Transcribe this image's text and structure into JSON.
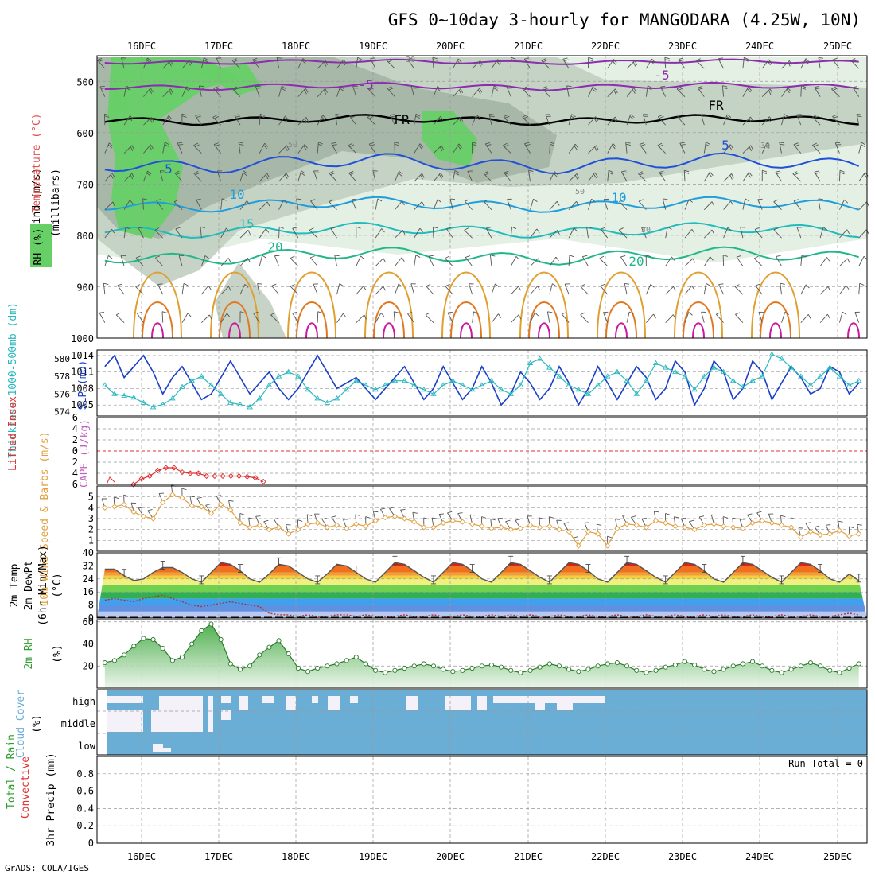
{
  "page": {
    "title": "GFS 0~10day 3-hourly for MANGODARA (4.25W, 10N)",
    "footer": "GrADS: COLA/IGES",
    "run_total": "Run Total = 0"
  },
  "colors": {
    "rh_light": "#e3efe3",
    "rh_mid": "#c3d1c3",
    "rh_dark": "#a6b6a6",
    "rh_green": "#66d066",
    "temp_neg5": "#8c2db0",
    "temp_fr": "#000000",
    "temp_5": "#2050d8",
    "temp_10": "#1e9edc",
    "temp_15": "#20bcbc",
    "temp_20": "#20b88a",
    "temp_25": "#e0a030",
    "temp_30": "#e07820",
    "temp_35": "#cc1aa0",
    "slp": "#1a3fc8",
    "thickness": "#2ab8c0",
    "lifted_index": "#e03030",
    "cape": "#c060c0",
    "wind_speed": "#e0a040",
    "barb": "#555555",
    "rh2m": "#2fa02f",
    "cloud": "#6aaed6",
    "cloud_clear": "#f4f2f8",
    "precip_total": "#2fa02f",
    "precip_conv": "#e03030"
  },
  "chart_data": [
    {
      "id": "upper",
      "type": "heatmap",
      "x_dates": [
        "16DEC",
        "17DEC",
        "18DEC",
        "19DEC",
        "20DEC",
        "21DEC",
        "22DEC",
        "23DEC",
        "24DEC",
        "25DEC"
      ],
      "y_ticks": [
        500,
        600,
        700,
        800,
        900,
        1000
      ],
      "ylim": [
        1000,
        450
      ],
      "ylabel": "(millibars)",
      "side_labels": [
        "Wind (m/s)",
        "Temperature (°C)",
        "RH (%)"
      ],
      "contour_labels": [
        "-5",
        "-5",
        "FR",
        "FR",
        "5",
        "5",
        "10",
        "10",
        "15",
        "20",
        "20",
        "30",
        "30",
        "30",
        "50",
        "50"
      ],
      "rh_legend": "RH (%)"
    },
    {
      "id": "slp",
      "type": "line",
      "ylabel_left": "Thickness 1000-500mb (dm)",
      "ylabel_right": "SLP (mb)",
      "left_ticks": [
        "580",
        "578",
        "576",
        "574"
      ],
      "right_ticks": [
        "1014",
        "1011",
        "1008",
        "1005"
      ],
      "ylim_slp": [
        1003,
        1015
      ],
      "ylim_thick": [
        573.5,
        581
      ],
      "series": [
        {
          "name": "SLP",
          "color": "slp",
          "values": [
            1008,
            1012,
            1014,
            1010,
            1012,
            1014,
            1011,
            1007,
            1010,
            1012,
            1009,
            1006,
            1007,
            1010,
            1013,
            1010,
            1007,
            1009,
            1011,
            1008,
            1006,
            1008,
            1011,
            1014,
            1011,
            1008,
            1009,
            1010,
            1008,
            1006,
            1008,
            1010,
            1012,
            1009,
            1006,
            1008,
            1012,
            1009,
            1006,
            1008,
            1012,
            1009,
            1005,
            1007,
            1011,
            1009,
            1006,
            1008,
            1012,
            1009,
            1005,
            1008,
            1012,
            1009,
            1006,
            1009,
            1012,
            1010,
            1006,
            1008,
            1013,
            1011,
            1005,
            1008,
            1013,
            1011,
            1006,
            1008,
            1013,
            1011,
            1006,
            1009,
            1012,
            1010,
            1007,
            1008,
            1012,
            1011,
            1007,
            1009
          ]
        },
        {
          "name": "Thickness",
          "color": "thickness",
          "values": [
            576.5,
            577.0,
            576.0,
            575.8,
            575.6,
            575.0,
            574.5,
            574.8,
            575.5,
            576.8,
            577.5,
            578.0,
            577.0,
            576.0,
            575.0,
            574.8,
            574.5,
            575.5,
            577.0,
            578.0,
            578.5,
            578.0,
            576.5,
            575.5,
            575.0,
            575.5,
            576.5,
            577.5,
            577.0,
            576.5,
            577.0,
            577.5,
            577.5,
            577.0,
            576.5,
            576.0,
            577.0,
            577.5,
            577.0,
            576.5,
            577.0,
            577.5,
            576.5,
            576.0,
            577.0,
            579.5,
            580.0,
            579.0,
            578.0,
            577.0,
            576.5,
            576.0,
            577.0,
            578.0,
            578.5,
            577.5,
            576.0,
            577.5,
            579.5,
            579.0,
            578.5,
            578.0,
            576.5,
            578.0,
            579.0,
            578.5,
            577.5,
            576.8,
            577.5,
            578.0,
            580.5,
            580.0,
            579.0,
            578.0,
            577.0,
            578.0,
            579.0,
            578.0,
            577.0,
            577.5
          ]
        }
      ]
    },
    {
      "id": "li",
      "type": "line",
      "ylabel_left": "Lifted Index",
      "ylabel_right": "CAPE (J/kg)",
      "ticks": [
        "-6",
        "-4",
        "-2",
        "0",
        "2",
        "4",
        "6"
      ],
      "ylim": [
        -6,
        6
      ],
      "series": [
        {
          "name": "Lifted Index",
          "color": "lifted_index",
          "x": [
            0.9,
            1.0,
            1.1,
            1.2,
            1.3,
            1.4,
            1.5,
            1.6,
            1.7,
            1.8,
            1.9,
            2.0,
            2.1,
            2.2,
            2.3,
            2.4,
            2.5
          ],
          "values": [
            6,
            5,
            4.5,
            3.5,
            3,
            3,
            3.8,
            4,
            4,
            4.5,
            4.5,
            4.5,
            4.5,
            4.5,
            4.6,
            4.8,
            5.5
          ]
        }
      ]
    },
    {
      "id": "wind",
      "type": "line",
      "ylabel": "10m Wind Speed & Barbs (m/s)",
      "ticks": [
        "1",
        "2",
        "3",
        "4",
        "5"
      ],
      "ylim": [
        0,
        6
      ],
      "series": [
        {
          "name": "10m Wind Speed",
          "color": "wind_speed",
          "values": [
            4.2,
            4.0,
            4.1,
            4.3,
            3.6,
            3.2,
            3.0,
            4.5,
            5.2,
            4.9,
            4.2,
            4.1,
            3.5,
            4.3,
            3.8,
            2.6,
            2.2,
            2.4,
            2.0,
            2.2,
            1.6,
            2.0,
            2.5,
            2.6,
            2.2,
            2.4,
            2.1,
            2.5,
            2.3,
            2.8,
            3.1,
            3.2,
            3.0,
            2.7,
            2.2,
            2.2,
            2.6,
            2.8,
            2.7,
            2.5,
            2.3,
            2.1,
            2.2,
            2.0,
            2.1,
            2.4,
            2.2,
            2.3,
            2.0,
            1.8,
            0.5,
            1.8,
            1.6,
            0.5,
            2.1,
            2.5,
            2.4,
            2.2,
            2.8,
            2.6,
            2.3,
            2.2,
            2.0,
            2.4,
            2.5,
            2.3,
            2.2,
            2.1,
            2.6,
            2.8,
            2.6,
            2.4,
            2.2,
            1.3,
            1.8,
            1.5,
            1.6,
            1.9,
            1.4,
            1.6
          ]
        }
      ]
    },
    {
      "id": "temp",
      "type": "area",
      "ylabel": "2m Temp 2m DewPt (6hr Min/Max) (°C)",
      "ticks": [
        "0",
        "8",
        "16",
        "24",
        "32",
        "40"
      ],
      "ylim": [
        0,
        40
      ],
      "series": [
        {
          "name": "2m Temp",
          "values": [
            28,
            30,
            30,
            26,
            23,
            24,
            28,
            31,
            31,
            28,
            24,
            22,
            28,
            34,
            33,
            29,
            24,
            22,
            27,
            33,
            32,
            28,
            24,
            22,
            27,
            33,
            32,
            28,
            24,
            22,
            28,
            34,
            33,
            29,
            25,
            22,
            28,
            34,
            33,
            29,
            24,
            22,
            28,
            34,
            33,
            29,
            25,
            22,
            28,
            34,
            33,
            29,
            24,
            22,
            28,
            34,
            33,
            29,
            25,
            22,
            28,
            34,
            33,
            29,
            24,
            22,
            28,
            34,
            33,
            29,
            25,
            22,
            28,
            34,
            33,
            29,
            24,
            22,
            27,
            23
          ]
        },
        {
          "name": "2m DewPt",
          "values": [
            10,
            11,
            12,
            11,
            10,
            12,
            13,
            14,
            12,
            10,
            8,
            7,
            8,
            9,
            10,
            9,
            8,
            7,
            3,
            2,
            2,
            1,
            2,
            1,
            1,
            2,
            2,
            1,
            2,
            1,
            1,
            1,
            2,
            1,
            1,
            2,
            1,
            1,
            2,
            1,
            1,
            2,
            1,
            2,
            1,
            2,
            1,
            1,
            2,
            1,
            1,
            2,
            1,
            1,
            2,
            1,
            1,
            2,
            1,
            1,
            2,
            1,
            1,
            2,
            1,
            2,
            1,
            1,
            2,
            1,
            1,
            2,
            1,
            1,
            2,
            1,
            1,
            2,
            3,
            2
          ]
        }
      ]
    },
    {
      "id": "rh",
      "type": "area",
      "ylabel": "2m RH (%)",
      "ticks": [
        "20",
        "40",
        "60"
      ],
      "ylim": [
        0,
        62
      ],
      "series": [
        {
          "name": "2m RH",
          "color": "rh2m",
          "values": [
            20,
            23,
            25,
            30,
            38,
            45,
            44,
            36,
            25,
            28,
            40,
            52,
            58,
            44,
            22,
            17,
            20,
            30,
            37,
            43,
            31,
            18,
            15,
            18,
            20,
            22,
            25,
            28,
            22,
            16,
            14,
            16,
            18,
            20,
            22,
            20,
            17,
            15,
            16,
            18,
            20,
            21,
            19,
            16,
            14,
            16,
            19,
            22,
            20,
            17,
            15,
            17,
            20,
            22,
            23,
            20,
            16,
            14,
            16,
            19,
            21,
            24,
            21,
            17,
            15,
            17,
            20,
            22,
            24,
            20,
            16,
            14,
            17,
            20,
            23,
            20,
            16,
            14,
            18,
            22
          ]
        }
      ]
    },
    {
      "id": "cloud",
      "type": "heatmap",
      "ylabel": "Cloud Cover (%)",
      "levels": [
        "high",
        "middle",
        "low"
      ]
    },
    {
      "id": "precip",
      "type": "bar",
      "ylabel": "Total / Rain Convective 3hr Precip (mm)",
      "ticks": [
        "0",
        "0.2",
        "0.4",
        "0.6",
        "0.8"
      ],
      "ylim": [
        0,
        1
      ],
      "x_dates": [
        "16DEC",
        "17DEC",
        "18DEC",
        "19DEC",
        "20DEC",
        "21DEC",
        "22DEC",
        "23DEC",
        "24DEC",
        "25DEC"
      ],
      "series": [
        {
          "name": "Total",
          "color": "precip_total",
          "values": []
        },
        {
          "name": "Rain Convective",
          "color": "precip_conv",
          "values": []
        }
      ]
    }
  ]
}
